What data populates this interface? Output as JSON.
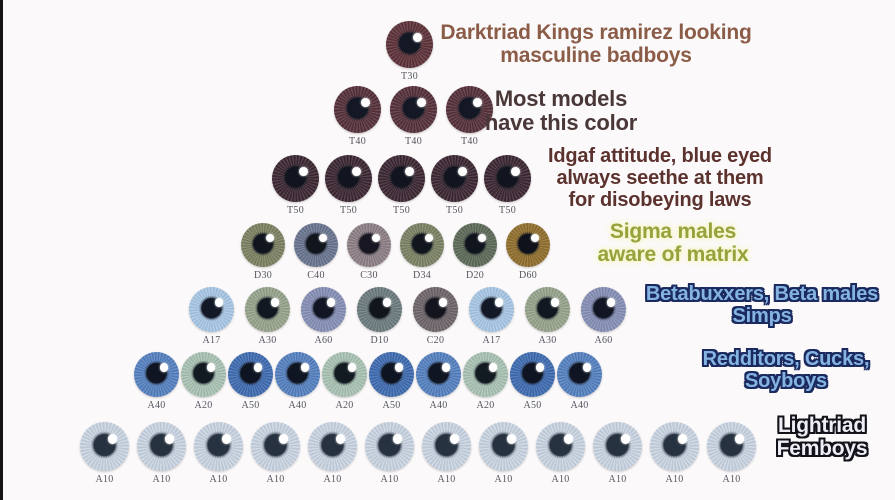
{
  "page": {
    "background_color": "#fbf9fa",
    "edge_bar_color": "#141414"
  },
  "annotations": {
    "darktriad": {
      "text": "Darktriad Kings ramirez looking\nmasculine badboys",
      "color": "#8b5c47"
    },
    "models": {
      "text": "Most models\nhave this color",
      "color": "#4a3838"
    },
    "idgaf": {
      "text": "Idgaf attitude, blue eyed\nalways seethe at them\nfor disobeying laws",
      "color": "#5c322e"
    },
    "sigma": {
      "text": "Sigma males\naware of matrix",
      "color": "#95a33e",
      "glow": "#f6f5c0"
    },
    "betabuxxers": {
      "text": "Betabuxxers, Beta males\nSimps",
      "color": "#85b4e2",
      "outline": "#1b2a5e"
    },
    "redditors": {
      "text": "Redditors, Cucks,\nSoyboys",
      "color": "#85b4e2",
      "outline": "#1b2a5e"
    },
    "lightriad": {
      "text": "Lightriad\nFemboys",
      "color": "#edeef6",
      "outline": "#121218"
    }
  },
  "pyramid": {
    "rows": [
      {
        "eyes": [
          "T30"
        ]
      },
      {
        "eyes": [
          "T40",
          "T40",
          "T40"
        ]
      },
      {
        "eyes": [
          "T50",
          "T50",
          "T50",
          "T50",
          "T50"
        ]
      },
      {
        "eyes": [
          "D30",
          "C40",
          "C30",
          "D34",
          "D20",
          "D60"
        ]
      },
      {
        "eyes": [
          "A17",
          "A30",
          "A60",
          "D10",
          "C20",
          "A17",
          "A30",
          "A60"
        ]
      },
      {
        "eyes": [
          "A40",
          "A20",
          "A50",
          "A40",
          "A20",
          "A50",
          "A40",
          "A20",
          "A50",
          "A40"
        ]
      },
      {
        "eyes": [
          "A10",
          "A10",
          "A10",
          "A10",
          "A10",
          "A10",
          "A10",
          "A10",
          "A10",
          "A10",
          "A10",
          "A10"
        ]
      }
    ],
    "eye_colors": {
      "T30": {
        "iris": "#5e333a",
        "rim": "#3b2129",
        "pupil": "#141824"
      },
      "T40": {
        "iris": "#57323b",
        "rim": "#362028",
        "pupil": "#141824"
      },
      "T50": {
        "iris": "#3c2833",
        "rim": "#261923",
        "pupil": "#121520"
      },
      "D30": {
        "iris": "#7e8263",
        "rim": "#4d5039",
        "pupil": "#11161e"
      },
      "C40": {
        "iris": "#6a7690",
        "rim": "#404a5e",
        "pupil": "#11161e"
      },
      "C30": {
        "iris": "#8e8187",
        "rim": "#5c5056",
        "pupil": "#181622"
      },
      "D34": {
        "iris": "#7c8365",
        "rim": "#4c523c",
        "pupil": "#11161e"
      },
      "D20": {
        "iris": "#5e6a59",
        "rim": "#374036",
        "pupil": "#10151d"
      },
      "D60": {
        "iris": "#92702e",
        "rim": "#503d1d",
        "pupil": "#0f121a"
      },
      "A17": {
        "iris": "#a9c8e6",
        "rim": "#6e93ba",
        "pupil": "#121826"
      },
      "A30": {
        "iris": "#98a58d",
        "rim": "#616f56",
        "pupil": "#121822"
      },
      "A60": {
        "iris": "#8791b8",
        "rim": "#525d86",
        "pupil": "#121624"
      },
      "D10": {
        "iris": "#6e7d80",
        "rim": "#41524f",
        "pupil": "#10161c"
      },
      "C20": {
        "iris": "#6f666b",
        "rim": "#443b40",
        "pupil": "#14141e"
      },
      "A40": {
        "iris": "#5682c2",
        "rim": "#2e5290",
        "pupil": "#0f1522"
      },
      "A20": {
        "iris": "#aac4b5",
        "rim": "#71927f",
        "pupil": "#121a22"
      },
      "A50": {
        "iris": "#406db2",
        "rim": "#254c84",
        "pupil": "#0e1422"
      },
      "A10": {
        "iris": "#cbd6e4",
        "rim": "#9cafc4",
        "pupil": "#26323f"
      }
    }
  }
}
